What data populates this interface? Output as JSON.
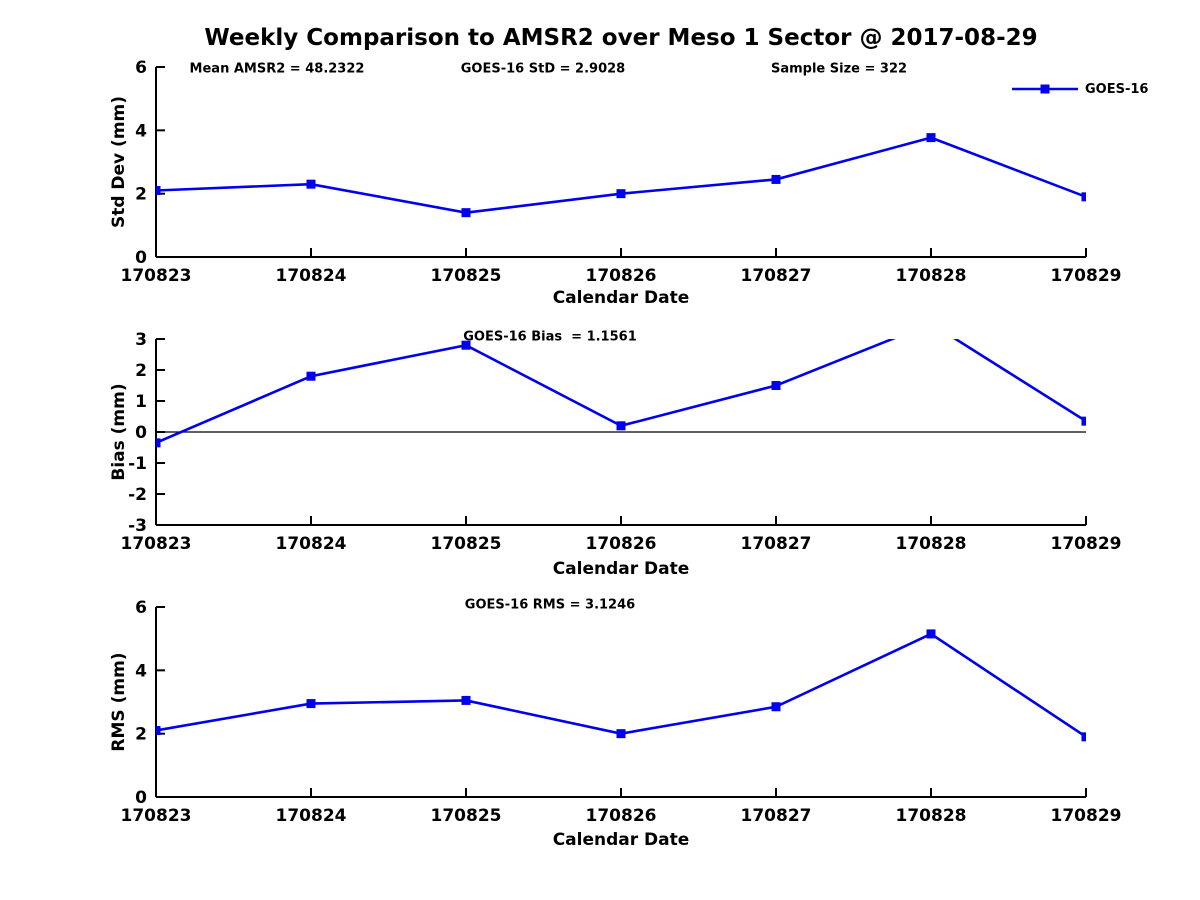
{
  "title": "Weekly Comparison to AMSR2 over Meso 1 Sector @ 2017-08-29",
  "colors": {
    "series": "#0000EE",
    "axis": "#000000",
    "text": "#000000"
  },
  "legend": {
    "label": "GOES-16"
  },
  "annotations": {
    "mean_amsr2": "Mean AMSR2 = 48.2322",
    "goes16_std": "GOES-16 StD = 2.9028",
    "sample_size": "Sample Size = 322",
    "goes16_bias": "GOES-16 Bias  = 1.1561",
    "goes16_rms": "GOES-16 RMS = 3.1246"
  },
  "chart_data": [
    {
      "type": "line",
      "name": "std_dev",
      "title": "",
      "xlabel": "Calendar Date",
      "ylabel": "Std Dev (mm)",
      "categories": [
        "170823",
        "170824",
        "170825",
        "170826",
        "170827",
        "170828",
        "170829"
      ],
      "series": [
        {
          "name": "GOES-16",
          "values": [
            2.1,
            2.3,
            1.4,
            2.0,
            2.45,
            3.77,
            1.9
          ]
        }
      ],
      "ylim": [
        0,
        6
      ],
      "yticks": [
        0,
        2,
        4,
        6
      ],
      "grid": false,
      "legend_position": "top-right",
      "zero_line": false
    },
    {
      "type": "line",
      "name": "bias",
      "title": "",
      "xlabel": "Calendar Date",
      "ylabel": "Bias (mm)",
      "categories": [
        "170823",
        "170824",
        "170825",
        "170826",
        "170827",
        "170828",
        "170829"
      ],
      "series": [
        {
          "name": "GOES-16",
          "values": [
            -0.35,
            1.8,
            2.8,
            0.2,
            1.5,
            3.5,
            0.35
          ]
        }
      ],
      "ylim": [
        -3,
        3
      ],
      "yticks": [
        -3,
        -2,
        -1,
        0,
        1,
        2,
        3
      ],
      "grid": false,
      "zero_line": true,
      "note": "values clipped to ylim; 170828 point (3.5) exceeds axis top and line is clipped"
    },
    {
      "type": "line",
      "name": "rms",
      "title": "",
      "xlabel": "Calendar Date",
      "ylabel": "RMS (mm)",
      "categories": [
        "170823",
        "170824",
        "170825",
        "170826",
        "170827",
        "170828",
        "170829"
      ],
      "series": [
        {
          "name": "GOES-16",
          "values": [
            2.1,
            2.95,
            3.05,
            2.0,
            2.85,
            5.15,
            1.9
          ]
        }
      ],
      "ylim": [
        0,
        6
      ],
      "yticks": [
        0,
        2,
        4,
        6
      ],
      "grid": false,
      "zero_line": false
    }
  ]
}
